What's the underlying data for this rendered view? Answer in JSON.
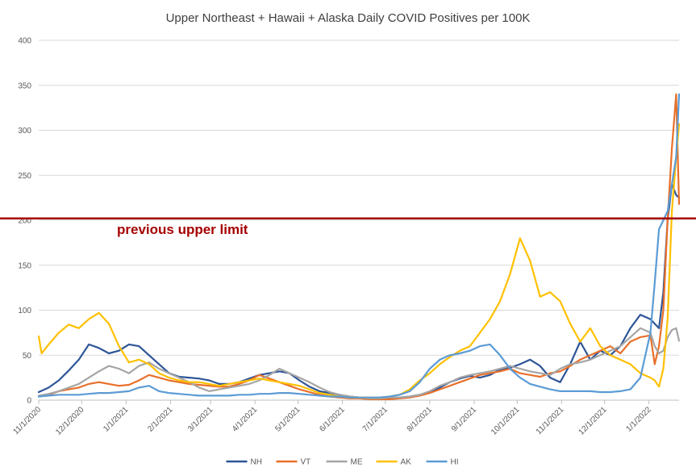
{
  "chart_data": {
    "type": "line",
    "title": "Upper Northeast + Hawaii + Alaska Daily COVID Positives per 100K",
    "xlabel": "",
    "ylabel": "",
    "ylim": [
      0,
      400
    ],
    "yticks": [
      "0",
      "50",
      "100",
      "150",
      "200",
      "250",
      "300",
      "350",
      "400"
    ],
    "xlim": [
      "2020-11-01",
      "2022-01-22"
    ],
    "xticks": [
      {
        "date": "2020-11-01",
        "label": "11/1/2020"
      },
      {
        "date": "2020-12-01",
        "label": "12/1/2020"
      },
      {
        "date": "2021-01-01",
        "label": "1/1/2021"
      },
      {
        "date": "2021-02-01",
        "label": "2/1/2021"
      },
      {
        "date": "2021-03-01",
        "label": "3/1/2021"
      },
      {
        "date": "2021-04-01",
        "label": "4/1/2021"
      },
      {
        "date": "2021-05-01",
        "label": "5/1/2021"
      },
      {
        "date": "2021-06-01",
        "label": "6/1/2021"
      },
      {
        "date": "2021-07-01",
        "label": "7/1/2021"
      },
      {
        "date": "2021-08-01",
        "label": "8/1/2021"
      },
      {
        "date": "2021-09-01",
        "label": "9/1/2021"
      },
      {
        "date": "2021-10-01",
        "label": "10/1/2021"
      },
      {
        "date": "2021-11-01",
        "label": "11/1/2021"
      },
      {
        "date": "2021-12-01",
        "label": "12/1/2021"
      },
      {
        "date": "2022-01-01",
        "label": "1/1/2022"
      }
    ],
    "grid": true,
    "legend_position": "bottom",
    "reference_line": {
      "value": 202,
      "label": "previous upper limit",
      "color": "#a50000"
    },
    "series": [
      {
        "name": "NH",
        "color": "#2e5597",
        "x": [
          "2020-11-01",
          "2020-11-08",
          "2020-11-15",
          "2020-11-22",
          "2020-11-29",
          "2020-12-06",
          "2020-12-13",
          "2020-12-20",
          "2020-12-27",
          "2021-01-03",
          "2021-01-10",
          "2021-01-17",
          "2021-01-24",
          "2021-01-31",
          "2021-02-07",
          "2021-02-14",
          "2021-02-21",
          "2021-02-28",
          "2021-03-07",
          "2021-03-14",
          "2021-03-21",
          "2021-03-28",
          "2021-04-04",
          "2021-04-11",
          "2021-04-18",
          "2021-04-25",
          "2021-05-02",
          "2021-05-09",
          "2021-05-16",
          "2021-05-23",
          "2021-05-30",
          "2021-06-06",
          "2021-06-13",
          "2021-06-20",
          "2021-06-27",
          "2021-07-04",
          "2021-07-11",
          "2021-07-18",
          "2021-07-25",
          "2021-08-01",
          "2021-08-08",
          "2021-08-15",
          "2021-08-22",
          "2021-08-29",
          "2021-09-05",
          "2021-09-12",
          "2021-09-19",
          "2021-09-26",
          "2021-10-03",
          "2021-10-10",
          "2021-10-17",
          "2021-10-24",
          "2021-10-31",
          "2021-11-07",
          "2021-11-14",
          "2021-11-21",
          "2021-11-28",
          "2021-12-05",
          "2021-12-12",
          "2021-12-19",
          "2021-12-26",
          "2022-01-02",
          "2022-01-05",
          "2022-01-08",
          "2022-01-11",
          "2022-01-14",
          "2022-01-17",
          "2022-01-20",
          "2022-01-22"
        ],
        "values": [
          9,
          14,
          22,
          33,
          45,
          62,
          58,
          52,
          55,
          62,
          60,
          50,
          40,
          30,
          26,
          25,
          24,
          22,
          18,
          18,
          20,
          24,
          28,
          30,
          32,
          30,
          22,
          15,
          10,
          8,
          6,
          4,
          3,
          2,
          2,
          2,
          3,
          4,
          6,
          9,
          14,
          20,
          24,
          27,
          25,
          28,
          34,
          36,
          40,
          45,
          38,
          25,
          20,
          40,
          65,
          45,
          55,
          50,
          60,
          80,
          95,
          90,
          85,
          80,
          120,
          200,
          240,
          228,
          225
        ]
      },
      {
        "name": "VT",
        "color": "#e8702a",
        "x": [
          "2020-11-01",
          "2020-11-08",
          "2020-11-15",
          "2020-11-22",
          "2020-11-29",
          "2020-12-06",
          "2020-12-13",
          "2020-12-20",
          "2020-12-27",
          "2021-01-03",
          "2021-01-10",
          "2021-01-17",
          "2021-01-24",
          "2021-01-31",
          "2021-02-07",
          "2021-02-14",
          "2021-02-21",
          "2021-02-28",
          "2021-03-07",
          "2021-03-14",
          "2021-03-21",
          "2021-03-28",
          "2021-04-04",
          "2021-04-11",
          "2021-04-18",
          "2021-04-25",
          "2021-05-02",
          "2021-05-09",
          "2021-05-16",
          "2021-05-23",
          "2021-05-30",
          "2021-06-06",
          "2021-06-13",
          "2021-06-20",
          "2021-06-27",
          "2021-07-04",
          "2021-07-11",
          "2021-07-18",
          "2021-07-25",
          "2021-08-01",
          "2021-08-08",
          "2021-08-15",
          "2021-08-22",
          "2021-08-29",
          "2021-09-05",
          "2021-09-12",
          "2021-09-19",
          "2021-09-26",
          "2021-10-03",
          "2021-10-10",
          "2021-10-17",
          "2021-10-24",
          "2021-10-31",
          "2021-11-07",
          "2021-11-14",
          "2021-11-21",
          "2021-11-28",
          "2021-12-05",
          "2021-12-12",
          "2021-12-19",
          "2021-12-26",
          "2022-01-02",
          "2022-01-05",
          "2022-01-08",
          "2022-01-11",
          "2022-01-14",
          "2022-01-17",
          "2022-01-20",
          "2022-01-22"
        ],
        "values": [
          4,
          6,
          10,
          12,
          14,
          18,
          20,
          18,
          16,
          17,
          22,
          28,
          25,
          22,
          20,
          18,
          17,
          16,
          15,
          15,
          18,
          22,
          28,
          24,
          20,
          16,
          12,
          9,
          6,
          4,
          3,
          2,
          2,
          1,
          1,
          1,
          2,
          3,
          5,
          8,
          12,
          16,
          20,
          24,
          28,
          30,
          32,
          35,
          30,
          28,
          26,
          30,
          32,
          38,
          45,
          50,
          55,
          60,
          52,
          65,
          70,
          72,
          40,
          60,
          100,
          200,
          280,
          340,
          218
        ]
      },
      {
        "name": "ME",
        "color": "#a5a5a5",
        "x": [
          "2020-11-01",
          "2020-11-08",
          "2020-11-15",
          "2020-11-22",
          "2020-11-29",
          "2020-12-06",
          "2020-12-13",
          "2020-12-20",
          "2020-12-27",
          "2021-01-03",
          "2021-01-10",
          "2021-01-17",
          "2021-01-24",
          "2021-01-31",
          "2021-02-07",
          "2021-02-14",
          "2021-02-21",
          "2021-02-28",
          "2021-03-07",
          "2021-03-14",
          "2021-03-21",
          "2021-03-28",
          "2021-04-04",
          "2021-04-11",
          "2021-04-18",
          "2021-04-25",
          "2021-05-02",
          "2021-05-09",
          "2021-05-16",
          "2021-05-23",
          "2021-05-30",
          "2021-06-06",
          "2021-06-13",
          "2021-06-20",
          "2021-06-27",
          "2021-07-04",
          "2021-07-11",
          "2021-07-18",
          "2021-07-25",
          "2021-08-01",
          "2021-08-08",
          "2021-08-15",
          "2021-08-22",
          "2021-08-29",
          "2021-09-05",
          "2021-09-12",
          "2021-09-19",
          "2021-09-26",
          "2021-10-03",
          "2021-10-10",
          "2021-10-17",
          "2021-10-24",
          "2021-10-31",
          "2021-11-07",
          "2021-11-14",
          "2021-11-21",
          "2021-11-28",
          "2021-12-05",
          "2021-12-12",
          "2021-12-19",
          "2021-12-26",
          "2022-01-02",
          "2022-01-05",
          "2022-01-08",
          "2022-01-11",
          "2022-01-14",
          "2022-01-17",
          "2022-01-20",
          "2022-01-22"
        ],
        "values": [
          5,
          7,
          10,
          14,
          18,
          25,
          32,
          38,
          35,
          30,
          38,
          42,
          35,
          30,
          25,
          20,
          14,
          10,
          12,
          14,
          16,
          18,
          22,
          28,
          35,
          30,
          25,
          20,
          14,
          9,
          6,
          4,
          3,
          2,
          2,
          3,
          3,
          4,
          6,
          10,
          16,
          20,
          25,
          28,
          30,
          32,
          35,
          38,
          35,
          32,
          30,
          28,
          35,
          40,
          42,
          45,
          50,
          55,
          60,
          70,
          80,
          75,
          60,
          52,
          55,
          70,
          78,
          80,
          66
        ]
      },
      {
        "name": "AK",
        "color": "#ffc000",
        "x": [
          "2020-11-01",
          "2020-11-03",
          "2020-11-08",
          "2020-11-15",
          "2020-11-22",
          "2020-11-29",
          "2020-12-06",
          "2020-12-13",
          "2020-12-20",
          "2020-12-27",
          "2021-01-03",
          "2021-01-10",
          "2021-01-17",
          "2021-01-24",
          "2021-01-31",
          "2021-02-07",
          "2021-02-14",
          "2021-02-21",
          "2021-02-28",
          "2021-03-07",
          "2021-03-14",
          "2021-03-21",
          "2021-03-28",
          "2021-04-04",
          "2021-04-11",
          "2021-04-18",
          "2021-04-25",
          "2021-05-02",
          "2021-05-09",
          "2021-05-16",
          "2021-05-23",
          "2021-05-30",
          "2021-06-06",
          "2021-06-13",
          "2021-06-20",
          "2021-06-27",
          "2021-07-04",
          "2021-07-11",
          "2021-07-18",
          "2021-07-25",
          "2021-08-01",
          "2021-08-08",
          "2021-08-15",
          "2021-08-22",
          "2021-08-29",
          "2021-09-05",
          "2021-09-12",
          "2021-09-19",
          "2021-09-26",
          "2021-10-03",
          "2021-10-10",
          "2021-10-17",
          "2021-10-24",
          "2021-10-31",
          "2021-11-07",
          "2021-11-14",
          "2021-11-21",
          "2021-11-28",
          "2021-12-05",
          "2021-12-12",
          "2021-12-19",
          "2021-12-26",
          "2022-01-02",
          "2022-01-05",
          "2022-01-08",
          "2022-01-11",
          "2022-01-14",
          "2022-01-17",
          "2022-01-20",
          "2022-01-22"
        ],
        "values": [
          71,
          52,
          62,
          75,
          84,
          80,
          90,
          97,
          85,
          60,
          42,
          45,
          40,
          30,
          25,
          22,
          20,
          20,
          18,
          16,
          18,
          20,
          22,
          24,
          22,
          20,
          18,
          16,
          12,
          8,
          6,
          4,
          3,
          3,
          3,
          3,
          4,
          6,
          12,
          22,
          30,
          40,
          48,
          55,
          60,
          75,
          90,
          110,
          140,
          180,
          155,
          115,
          120,
          110,
          85,
          65,
          80,
          60,
          50,
          45,
          40,
          30,
          25,
          22,
          15,
          35,
          90,
          210,
          270,
          307
        ]
      },
      {
        "name": "HI",
        "color": "#5b9bd5",
        "x": [
          "2020-11-01",
          "2020-11-08",
          "2020-11-15",
          "2020-11-22",
          "2020-11-29",
          "2020-12-06",
          "2020-12-13",
          "2020-12-20",
          "2020-12-27",
          "2021-01-03",
          "2021-01-10",
          "2021-01-17",
          "2021-01-24",
          "2021-01-31",
          "2021-02-07",
          "2021-02-14",
          "2021-02-21",
          "2021-02-28",
          "2021-03-07",
          "2021-03-14",
          "2021-03-21",
          "2021-03-28",
          "2021-04-04",
          "2021-04-11",
          "2021-04-18",
          "2021-04-25",
          "2021-05-02",
          "2021-05-09",
          "2021-05-16",
          "2021-05-23",
          "2021-05-30",
          "2021-06-06",
          "2021-06-13",
          "2021-06-20",
          "2021-06-27",
          "2021-07-04",
          "2021-07-11",
          "2021-07-18",
          "2021-07-25",
          "2021-08-01",
          "2021-08-08",
          "2021-08-15",
          "2021-08-22",
          "2021-08-29",
          "2021-09-05",
          "2021-09-12",
          "2021-09-19",
          "2021-09-26",
          "2021-10-03",
          "2021-10-10",
          "2021-10-17",
          "2021-10-24",
          "2021-10-31",
          "2021-11-07",
          "2021-11-14",
          "2021-11-21",
          "2021-11-28",
          "2021-12-05",
          "2021-12-12",
          "2021-12-19",
          "2021-12-26",
          "2022-01-02",
          "2022-01-05",
          "2022-01-08",
          "2022-01-11",
          "2022-01-14",
          "2022-01-17",
          "2022-01-20",
          "2022-01-22"
        ],
        "values": [
          4,
          5,
          6,
          6,
          6,
          7,
          8,
          8,
          9,
          10,
          14,
          16,
          10,
          8,
          7,
          6,
          5,
          5,
          5,
          5,
          6,
          6,
          7,
          7,
          8,
          8,
          7,
          6,
          5,
          4,
          4,
          3,
          3,
          3,
          3,
          4,
          6,
          10,
          20,
          35,
          45,
          50,
          52,
          55,
          60,
          62,
          50,
          35,
          25,
          18,
          15,
          12,
          10,
          10,
          10,
          10,
          9,
          9,
          10,
          12,
          25,
          75,
          130,
          190,
          200,
          210,
          240,
          270,
          340
        ]
      }
    ]
  }
}
